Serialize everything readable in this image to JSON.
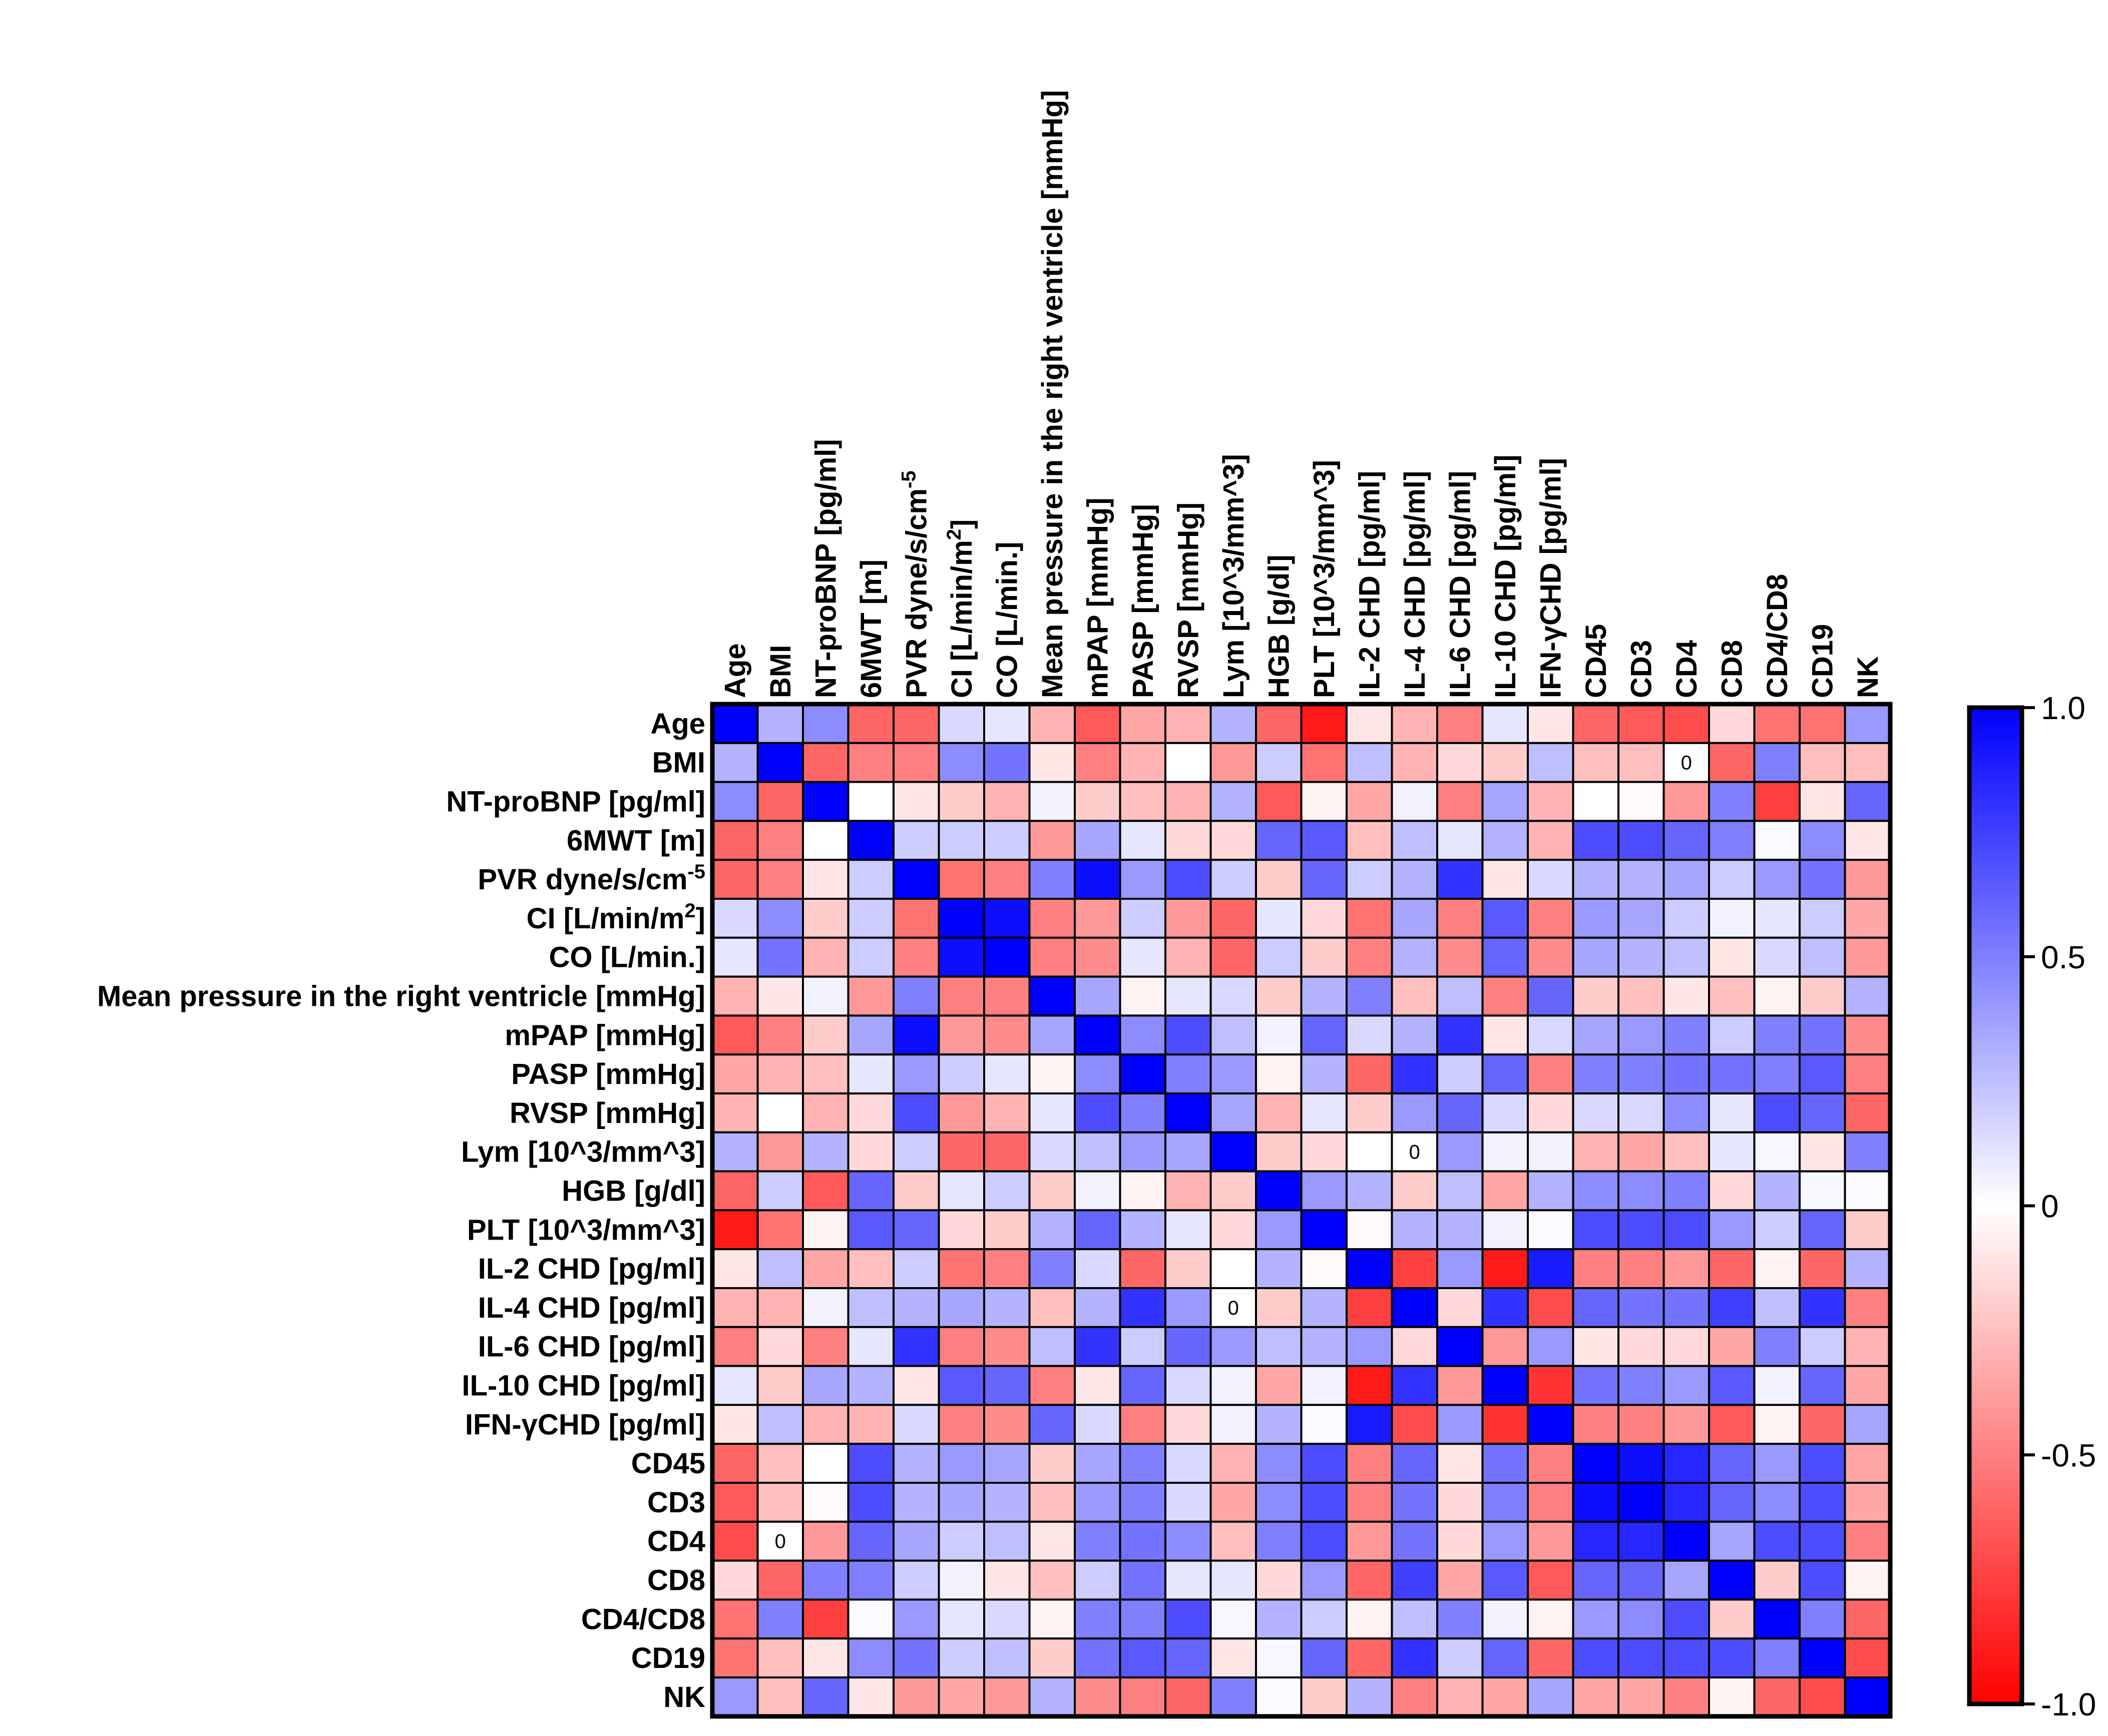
{
  "chart_data": {
    "type": "heatmap",
    "title": "",
    "variables": [
      "Age",
      "BMI",
      "NT-proBNP [pg/ml]",
      "6MWT [m]",
      "PVR dyne/s/cm-5",
      "CI [L/min/m2]",
      "CO [L/min.]",
      "Mean pressure in the right ventricle [mmHg]",
      "mPAP [mmHg]",
      "PASP [mmHg]",
      "RVSP [mmHg]",
      "Lym [10^3/mm^3]",
      "HGB [g/dl]",
      "PLT [10^3/mm^3]",
      "IL-2 CHD [pg/ml]",
      "IL-4 CHD [pg/ml]",
      "IL-6 CHD [pg/ml]",
      "IL-10 CHD [pg/ml]",
      "IFN-γCHD [pg/ml]",
      "CD45",
      "CD3",
      "CD4",
      "CD8",
      "CD4/CD8",
      "CD19",
      "NK"
    ],
    "labels": [
      {
        "base": "Age",
        "sup": ""
      },
      {
        "base": "BMI",
        "sup": ""
      },
      {
        "base": "NT-proBNP [pg/ml]",
        "sup": ""
      },
      {
        "base": "6MWT [m]",
        "sup": ""
      },
      {
        "base": "PVR dyne/s/cm",
        "sup": "-5",
        "after": ""
      },
      {
        "base": "CI [L/min/m",
        "sup": "2",
        "after": "]"
      },
      {
        "base": "CO [L/min.]",
        "sup": ""
      },
      {
        "base": "Mean pressure in the right ventricle [mmHg]",
        "sup": ""
      },
      {
        "base": "mPAP [mmHg]",
        "sup": ""
      },
      {
        "base": "PASP [mmHg]",
        "sup": ""
      },
      {
        "base": "RVSP [mmHg]",
        "sup": ""
      },
      {
        "base": "Lym [10^3/mm^3]",
        "sup": ""
      },
      {
        "base": "HGB [g/dl]",
        "sup": ""
      },
      {
        "base": "PLT [10^3/mm^3]",
        "sup": ""
      },
      {
        "base": "IL-2 CHD [pg/ml]",
        "sup": ""
      },
      {
        "base": "IL-4 CHD [pg/ml]",
        "sup": ""
      },
      {
        "base": "IL-6 CHD [pg/ml]",
        "sup": ""
      },
      {
        "base": "IL-10 CHD [pg/ml]",
        "sup": ""
      },
      {
        "base": "IFN-γCHD [pg/ml]",
        "sup": ""
      },
      {
        "base": "CD45",
        "sup": ""
      },
      {
        "base": "CD3",
        "sup": ""
      },
      {
        "base": "CD4",
        "sup": ""
      },
      {
        "base": "CD8",
        "sup": ""
      },
      {
        "base": "CD4/CD8",
        "sup": ""
      },
      {
        "base": "CD19",
        "sup": ""
      },
      {
        "base": "NK",
        "sup": ""
      }
    ],
    "upper_triangle_by_row": [
      [
        0.3,
        0.45,
        -0.6,
        -0.6,
        0.15,
        0.1,
        -0.3,
        -0.65,
        -0.35,
        -0.3,
        0.3,
        -0.6,
        -0.9,
        -0.1,
        -0.3,
        -0.5,
        0.1,
        -0.1,
        -0.6,
        -0.65,
        -0.7,
        -0.15,
        -0.55,
        -0.55,
        0.4
      ],
      [
        -0.6,
        -0.5,
        -0.5,
        0.45,
        0.55,
        -0.1,
        -0.5,
        -0.3,
        0.0,
        -0.4,
        0.2,
        -0.55,
        0.25,
        -0.3,
        -0.15,
        -0.2,
        0.25,
        -0.25,
        -0.25,
        0.0,
        -0.6,
        0.5,
        -0.25,
        -0.25
      ],
      [
        0.0,
        -0.1,
        -0.2,
        -0.3,
        0.05,
        -0.2,
        -0.25,
        -0.3,
        0.3,
        -0.65,
        -0.05,
        -0.35,
        0.05,
        -0.5,
        0.35,
        -0.3,
        0.0,
        -0.02,
        -0.4,
        0.5,
        -0.75,
        -0.1,
        0.6
      ],
      [
        0.2,
        0.2,
        0.2,
        -0.4,
        0.35,
        0.1,
        -0.15,
        -0.15,
        0.6,
        0.65,
        -0.25,
        0.25,
        0.1,
        0.3,
        -0.3,
        0.7,
        0.7,
        0.6,
        0.5,
        0.02,
        0.45,
        -0.1
      ],
      [
        -0.55,
        -0.5,
        0.5,
        0.95,
        0.4,
        0.7,
        0.2,
        -0.2,
        0.6,
        0.2,
        0.3,
        0.8,
        -0.1,
        0.15,
        0.3,
        0.3,
        0.35,
        0.2,
        0.4,
        0.55,
        -0.4
      ],
      [
        0.95,
        -0.5,
        -0.4,
        0.2,
        -0.4,
        -0.6,
        0.1,
        -0.15,
        -0.55,
        0.35,
        -0.5,
        0.65,
        -0.5,
        0.4,
        0.35,
        0.2,
        0.05,
        0.1,
        0.2,
        -0.35
      ],
      [
        -0.5,
        -0.45,
        0.1,
        -0.3,
        -0.6,
        0.2,
        -0.2,
        -0.5,
        0.3,
        -0.45,
        0.6,
        -0.45,
        0.35,
        0.3,
        0.25,
        -0.1,
        0.15,
        0.25,
        -0.4
      ],
      [
        0.35,
        -0.05,
        0.1,
        0.15,
        -0.2,
        0.3,
        0.5,
        -0.25,
        0.25,
        -0.5,
        0.6,
        -0.2,
        -0.25,
        -0.1,
        -0.25,
        -0.05,
        -0.2,
        0.3
      ],
      [
        0.45,
        0.7,
        0.25,
        0.05,
        0.6,
        0.15,
        0.3,
        0.8,
        -0.1,
        0.15,
        0.35,
        0.4,
        0.5,
        0.2,
        0.5,
        0.55,
        -0.45
      ],
      [
        0.5,
        0.4,
        -0.05,
        0.3,
        -0.6,
        0.8,
        0.2,
        0.6,
        -0.5,
        0.5,
        0.5,
        0.55,
        0.55,
        0.5,
        0.65,
        -0.5
      ],
      [
        0.35,
        -0.3,
        0.1,
        -0.2,
        0.4,
        0.6,
        0.15,
        -0.15,
        0.15,
        0.15,
        0.45,
        0.1,
        0.7,
        0.6,
        -0.6
      ],
      [
        -0.2,
        -0.15,
        0.0,
        0.0,
        0.4,
        0.05,
        0.05,
        -0.3,
        -0.35,
        -0.25,
        0.1,
        0.03,
        -0.1,
        0.5
      ],
      [
        0.4,
        0.3,
        -0.2,
        0.25,
        -0.35,
        0.3,
        0.45,
        0.45,
        0.5,
        -0.15,
        0.3,
        0.03,
        0.02
      ],
      [
        -0.02,
        0.3,
        0.3,
        0.05,
        0.02,
        0.7,
        0.7,
        0.7,
        0.4,
        0.2,
        0.6,
        -0.2
      ],
      [
        -0.75,
        0.4,
        -0.9,
        0.9,
        -0.5,
        -0.5,
        -0.4,
        -0.6,
        -0.05,
        -0.6,
        0.3
      ],
      [
        -0.15,
        0.8,
        -0.7,
        0.6,
        0.55,
        0.55,
        0.75,
        0.25,
        0.8,
        -0.5
      ],
      [
        -0.4,
        0.4,
        -0.1,
        -0.15,
        -0.15,
        -0.35,
        0.5,
        0.2,
        -0.3
      ],
      [
        -0.8,
        0.55,
        0.5,
        0.4,
        0.65,
        0.05,
        0.6,
        -0.35
      ],
      [
        -0.5,
        -0.5,
        -0.4,
        -0.65,
        -0.05,
        -0.6,
        0.35
      ],
      [
        0.95,
        0.85,
        0.6,
        0.4,
        0.7,
        -0.35
      ],
      [
        0.85,
        0.6,
        0.45,
        0.7,
        -0.35
      ],
      [
        0.35,
        0.7,
        0.7,
        -0.5
      ],
      [
        -0.2,
        0.7,
        -0.05
      ],
      [
        0.5,
        -0.6
      ],
      [
        -0.7
      ]
    ],
    "zero_annotations": [
      [
        1,
        21
      ],
      [
        21,
        1
      ],
      [
        11,
        15
      ],
      [
        15,
        11
      ]
    ],
    "zero_text": "0",
    "colorbar": {
      "range": [
        -1.0,
        1.0
      ],
      "ticks": [
        1.0,
        0.5,
        0,
        -0.5,
        -1.0
      ],
      "tick_labels": [
        "1.0",
        "0.5",
        "0",
        "-0.5",
        "-1.0"
      ],
      "colors": {
        "negative": "#ff0000",
        "zero": "#ffffff",
        "positive": "#0000ff"
      }
    },
    "xlabel": "",
    "ylabel": ""
  }
}
